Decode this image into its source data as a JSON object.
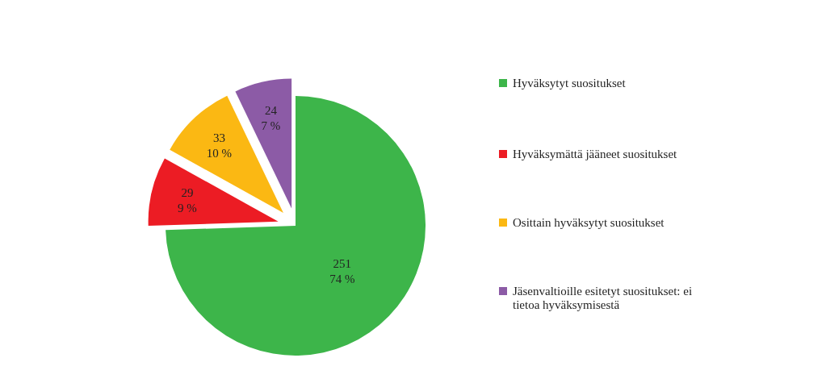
{
  "chart_data": {
    "type": "pie",
    "categories": [
      "Hyväksytyt suositukset",
      "Hyväksymättä jääneet suositukset",
      "Osittain hyväksytyt suositukset",
      "Jäsenvaltioille esitetyt suositukset: ei tietoa hyväksymisestä"
    ],
    "values": [
      251,
      29,
      33,
      24
    ],
    "colors": [
      "#3db54a",
      "#ec1c24",
      "#fbb813",
      "#8c5ba6"
    ],
    "value_labels": [
      "251\n74 %",
      "29\n9 %",
      "33\n10 %",
      "24\n7 %"
    ],
    "legend": "right"
  }
}
